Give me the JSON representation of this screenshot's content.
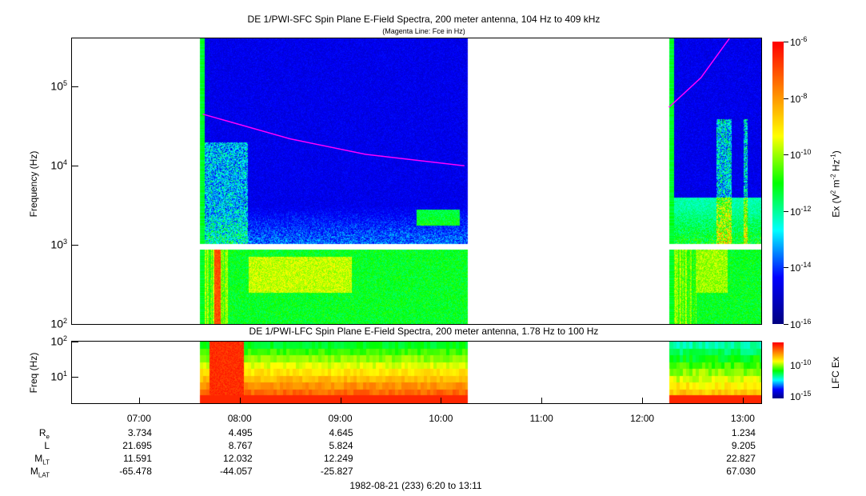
{
  "chart_data": [
    {
      "type": "heatmap",
      "title": "DE 1/PWI-SFC  Spin Plane E-Field Spectra, 200 meter antenna, 104 Hz to 409 kHz",
      "subtitle": "(Magenta Line: Fce in Hz)",
      "ylabel": "Frequency (Hz)",
      "yscale": "log",
      "ylim": [
        100,
        409000
      ],
      "yticks": [
        {
          "v": 100,
          "label": "10",
          "exp": "2"
        },
        {
          "v": 1000,
          "label": "10",
          "exp": "3"
        },
        {
          "v": 10000,
          "label": "10",
          "exp": "4"
        },
        {
          "v": 100000,
          "label": "10",
          "exp": "5"
        }
      ],
      "xlim": [
        "06:20",
        "13:11"
      ],
      "data_intervals": [
        [
          "07:36",
          "10:16"
        ],
        [
          "12:16",
          "13:11"
        ]
      ],
      "colorbar": {
        "label": "Ex (V² m⁻² Hz⁻¹)",
        "scale": "log",
        "range": [
          1e-16,
          1e-06
        ],
        "ticks": [
          {
            "label": "10",
            "exp": "-6"
          },
          {
            "label": "10",
            "exp": "-8"
          },
          {
            "label": "10",
            "exp": "-10"
          },
          {
            "label": "10",
            "exp": "-12"
          },
          {
            "label": "10",
            "exp": "-14"
          },
          {
            "label": "10",
            "exp": "-16"
          }
        ]
      },
      "fce_line": {
        "color": "#ff00ff",
        "segments": [
          [
            [
              "07:38",
              45000
            ],
            [
              "08:30",
              22000
            ],
            [
              "09:15",
              14000
            ],
            [
              "10:14",
              10000
            ]
          ],
          [
            [
              "12:16",
              55000
            ],
            [
              "12:35",
              130000
            ],
            [
              "12:52",
              409000
            ]
          ]
        ]
      }
    },
    {
      "type": "heatmap",
      "title": "DE 1/PWI-LFC  Spin Plane E-Field Spectra, 200 meter antenna, 1.78 Hz to 100 Hz",
      "ylabel": "Freq (Hz)",
      "yscale": "log",
      "ylim": [
        1.78,
        100
      ],
      "yticks": [
        {
          "v": 10,
          "label": "10",
          "exp": "1"
        },
        {
          "v": 100,
          "label": "10",
          "exp": "2"
        }
      ],
      "xlim": [
        "06:20",
        "13:11"
      ],
      "data_intervals": [
        [
          "07:36",
          "10:16"
        ],
        [
          "12:16",
          "13:11"
        ]
      ],
      "colorbar": {
        "label": "LFC Ex",
        "scale": "log",
        "ticks": [
          {
            "label": "10",
            "exp": "-10"
          },
          {
            "label": "10",
            "exp": "-15"
          }
        ]
      }
    }
  ],
  "colors": {
    "colormap": [
      "#00007f",
      "#0000ff",
      "#00ffff",
      "#00ff00",
      "#ffff00",
      "#ff8000",
      "#ff0000"
    ],
    "fce": "#ff00ff"
  },
  "xaxis": {
    "ticks": [
      "07:00",
      "08:00",
      "09:00",
      "10:00",
      "11:00",
      "12:00",
      "13:00"
    ]
  },
  "ephemeris": {
    "rows": [
      {
        "label": "R",
        "sub": "e",
        "values": [
          "3.734",
          "4.495",
          "4.645",
          "",
          "",
          "",
          "1.234"
        ]
      },
      {
        "label": "L",
        "sub": "",
        "values": [
          "21.695",
          "8.767",
          "5.824",
          "",
          "",
          "",
          "9.205"
        ]
      },
      {
        "label": "M",
        "sub": "LT",
        "values": [
          "11.591",
          "12.032",
          "12.249",
          "",
          "",
          "",
          "22.827"
        ]
      },
      {
        "label": "M",
        "sub": "LAT",
        "values": [
          "-65.478",
          "-44.057",
          "-25.827",
          "",
          "",
          "",
          "67.030"
        ]
      }
    ],
    "columns": [
      "",
      "08:00",
      "09:00",
      "10:00",
      "",
      "",
      "13:00"
    ]
  },
  "footer": "1982-08-21 (233) 6:20 to 13:11"
}
